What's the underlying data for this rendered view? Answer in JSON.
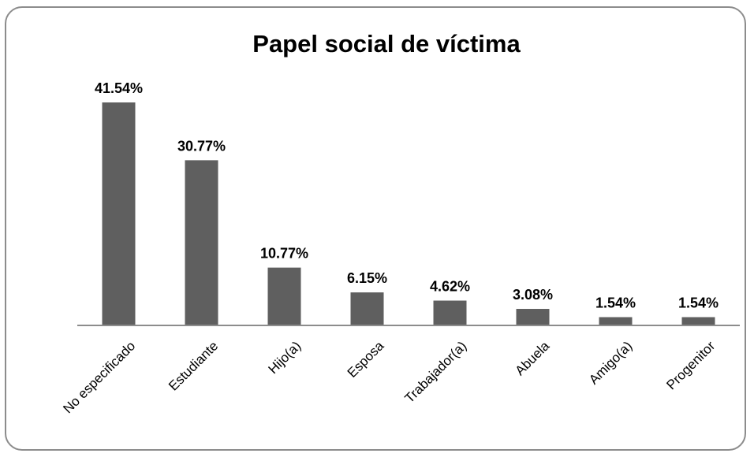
{
  "chart_data": {
    "type": "bar",
    "title": "Papel social de víctima",
    "xlabel": "",
    "ylabel": "",
    "categories": [
      "No especificado",
      "Estudiante",
      "Hijo(a)",
      "Esposa",
      "Trabajador(a)",
      "Abuela",
      "Amigo(a)",
      "Progenitor"
    ],
    "values": [
      41.54,
      30.77,
      10.77,
      6.15,
      4.62,
      3.08,
      1.54,
      1.54
    ],
    "data_labels": [
      "41.54%",
      "30.77%",
      "10.77%",
      "6.15%",
      "4.62%",
      "3.08%",
      "1.54%",
      "1.54%"
    ],
    "ylim": [
      0,
      45
    ],
    "grid": false,
    "legend": "none",
    "bar_color": "#5f5f5f",
    "axis_color": "#8c8c8c"
  }
}
